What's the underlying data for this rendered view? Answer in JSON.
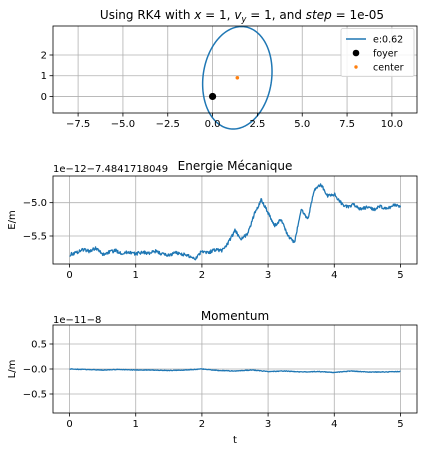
{
  "chart_data": [
    {
      "type": "line",
      "title_parts": [
        "Using RK4 with ",
        "x",
        " = 1, ",
        "v",
        "y",
        " = 1, and ",
        "step",
        " = 1e-05"
      ],
      "xlim": [
        -8.9,
        11.4
      ],
      "ylim": [
        -0.8,
        3.4
      ],
      "xticks": [
        -7.5,
        -5.0,
        -2.5,
        0.0,
        2.5,
        5.0,
        7.5,
        10.0
      ],
      "xtick_labels": [
        "−7.5",
        "−5.0",
        "−2.5",
        "0.0",
        "2.5",
        "5.0",
        "7.5",
        "10.0"
      ],
      "yticks": [
        0,
        1,
        2
      ],
      "ytick_labels": [
        "0",
        "1",
        "2"
      ],
      "grid": true,
      "legend_position": "top-right",
      "series": [
        {
          "name": "e:0.62",
          "kind": "ellipse-orbit",
          "color": "#1f77b4",
          "center": [
            1.38,
            0.9
          ],
          "semi_major": 2.5,
          "semi_minor": 1.9,
          "rotation_deg": 77
        },
        {
          "name": "foyer",
          "kind": "point",
          "color": "#000000",
          "x": 0,
          "y": 0
        },
        {
          "name": "center",
          "kind": "point",
          "color": "#ff7f0e",
          "x": 1.38,
          "y": 0.9
        }
      ]
    },
    {
      "type": "line",
      "title": "Energie Mécanique",
      "ylabel": "E/m",
      "offset_text": "1e−12−7.4841718049",
      "xlim": [
        -0.25,
        5.25
      ],
      "ylim": [
        -5.92,
        -4.6
      ],
      "xticks": [
        0,
        1,
        2,
        3,
        4,
        5
      ],
      "xtick_labels": [
        "0",
        "1",
        "2",
        "3",
        "4",
        "5"
      ],
      "yticks": [
        -5.5,
        -5.0
      ],
      "ytick_labels": [
        "−5.5",
        "−5.0"
      ],
      "grid": true,
      "series": [
        {
          "name": "energy",
          "color": "#1f77b4",
          "x": [
            0.0,
            0.1,
            0.2,
            0.3,
            0.4,
            0.5,
            0.6,
            0.7,
            0.8,
            0.9,
            1.0,
            1.1,
            1.2,
            1.3,
            1.4,
            1.5,
            1.6,
            1.7,
            1.8,
            1.9,
            2.0,
            2.1,
            2.2,
            2.3,
            2.4,
            2.5,
            2.6,
            2.7,
            2.8,
            2.9,
            3.0,
            3.1,
            3.2,
            3.3,
            3.4,
            3.5,
            3.6,
            3.7,
            3.8,
            3.9,
            4.0,
            4.1,
            4.2,
            4.3,
            4.4,
            4.5,
            4.6,
            4.7,
            4.8,
            4.9,
            5.0
          ],
          "y": [
            -5.78,
            -5.75,
            -5.7,
            -5.73,
            -5.68,
            -5.78,
            -5.74,
            -5.72,
            -5.76,
            -5.74,
            -5.77,
            -5.74,
            -5.76,
            -5.73,
            -5.77,
            -5.79,
            -5.75,
            -5.77,
            -5.8,
            -5.84,
            -5.72,
            -5.75,
            -5.7,
            -5.72,
            -5.6,
            -5.42,
            -5.55,
            -5.45,
            -5.15,
            -4.95,
            -5.15,
            -5.35,
            -5.25,
            -5.5,
            -5.6,
            -5.1,
            -5.25,
            -4.8,
            -4.73,
            -4.9,
            -4.87,
            -5.0,
            -5.07,
            -5.03,
            -5.1,
            -5.07,
            -5.1,
            -5.06,
            -5.1,
            -5.03,
            -5.05
          ]
        }
      ]
    },
    {
      "type": "line",
      "title": "Momentum",
      "ylabel": "L/m",
      "xlabel": "t",
      "offset_text": "1e−11−8",
      "xlim": [
        -0.25,
        5.25
      ],
      "ylim": [
        -0.88,
        0.88
      ],
      "xticks": [
        0,
        1,
        2,
        3,
        4,
        5
      ],
      "xtick_labels": [
        "0",
        "1",
        "2",
        "3",
        "4",
        "5"
      ],
      "yticks": [
        -0.5,
        0.0,
        0.5
      ],
      "ytick_labels": [
        "−0.5",
        "−0.0",
        "0.5"
      ],
      "grid": true,
      "series": [
        {
          "name": "momentum",
          "color": "#1f77b4",
          "x": [
            0.0,
            0.25,
            0.5,
            0.75,
            1.0,
            1.25,
            1.5,
            1.75,
            2.0,
            2.25,
            2.5,
            2.75,
            3.0,
            3.25,
            3.5,
            3.75,
            4.0,
            4.25,
            4.5,
            4.75,
            5.0
          ],
          "y": [
            0.0,
            -0.01,
            -0.02,
            -0.01,
            -0.02,
            -0.02,
            -0.03,
            -0.02,
            0.0,
            -0.03,
            -0.04,
            -0.02,
            -0.05,
            -0.04,
            -0.06,
            -0.05,
            -0.07,
            -0.04,
            -0.06,
            -0.06,
            -0.05
          ]
        }
      ]
    }
  ]
}
